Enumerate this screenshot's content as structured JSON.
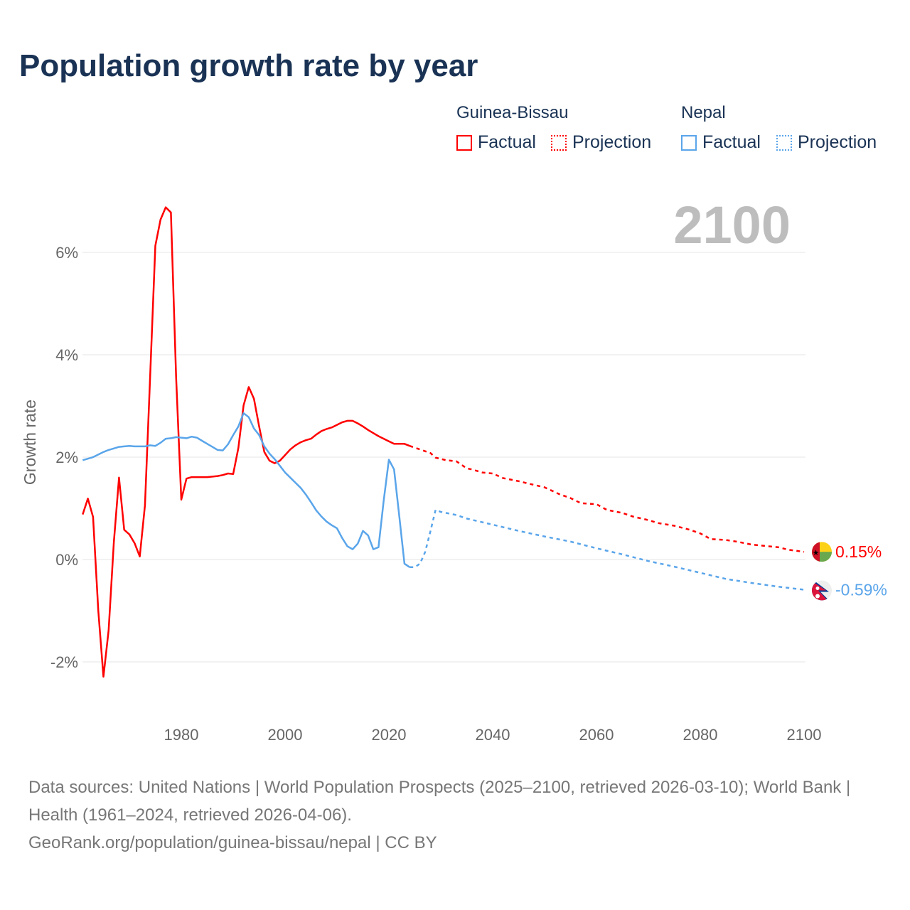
{
  "title": "Population growth rate by year",
  "legend": {
    "groups": [
      {
        "name": "Guinea-Bissau",
        "factual": "Factual",
        "projection": "Projection",
        "color": "#ff0000"
      },
      {
        "name": "Nepal",
        "factual": "Factual",
        "projection": "Projection",
        "color": "#5aa5ea"
      }
    ]
  },
  "footer": {
    "sources": "Data sources: United Nations | World Population Prospects (2025–2100, retrieved 2026-03-10); World Bank | Health (1961–2024, retrieved 2026-04-06).",
    "credit": "GeoRank.org/population/guinea-bissau/nepal | CC BY"
  },
  "chart_data": {
    "type": "line",
    "title": "Population growth rate by year",
    "ylabel": "Growth rate",
    "xlabel": "",
    "year_label": "2100",
    "xlim": [
      1961,
      2100
    ],
    "ylim": [
      -3,
      7
    ],
    "x_ticks": [
      "1980",
      "2000",
      "2020",
      "2040",
      "2060",
      "2080",
      "2100"
    ],
    "x_tick_values": [
      1980,
      2000,
      2020,
      2040,
      2060,
      2080,
      2100
    ],
    "y_ticks": [
      "-2%",
      "0%",
      "2%",
      "4%",
      "6%"
    ],
    "y_tick_values": [
      -2,
      0,
      2,
      4,
      6
    ],
    "grid": true,
    "series": [
      {
        "name": "Guinea-Bissau",
        "color": "#ff0000",
        "end_label": "0.15%",
        "factual": [
          [
            1961,
            0.88
          ],
          [
            1962,
            1.19
          ],
          [
            1963,
            0.83
          ],
          [
            1964,
            -0.99
          ],
          [
            1965,
            -2.29
          ],
          [
            1966,
            -1.38
          ],
          [
            1967,
            0.33
          ],
          [
            1968,
            1.6
          ],
          [
            1969,
            0.58
          ],
          [
            1970,
            0.49
          ],
          [
            1971,
            0.32
          ],
          [
            1972,
            0.06
          ],
          [
            1973,
            1.06
          ],
          [
            1974,
            3.58
          ],
          [
            1975,
            6.13
          ],
          [
            1976,
            6.64
          ],
          [
            1977,
            6.88
          ],
          [
            1978,
            6.78
          ],
          [
            1979,
            3.57
          ],
          [
            1980,
            1.17
          ],
          [
            1981,
            1.58
          ],
          [
            1982,
            1.61
          ],
          [
            1983,
            1.61
          ],
          [
            1984,
            1.61
          ],
          [
            1985,
            1.61
          ],
          [
            1986,
            1.62
          ],
          [
            1987,
            1.63
          ],
          [
            1988,
            1.65
          ],
          [
            1989,
            1.68
          ],
          [
            1990,
            1.67
          ],
          [
            1991,
            2.18
          ],
          [
            1992,
            3.01
          ],
          [
            1993,
            3.37
          ],
          [
            1994,
            3.14
          ],
          [
            1995,
            2.6
          ],
          [
            1996,
            2.1
          ],
          [
            1997,
            1.93
          ],
          [
            1998,
            1.88
          ],
          [
            1999,
            1.93
          ],
          [
            2000,
            2.04
          ],
          [
            2001,
            2.15
          ],
          [
            2002,
            2.23
          ],
          [
            2003,
            2.29
          ],
          [
            2004,
            2.33
          ],
          [
            2005,
            2.36
          ],
          [
            2006,
            2.44
          ],
          [
            2007,
            2.51
          ],
          [
            2008,
            2.55
          ],
          [
            2009,
            2.58
          ],
          [
            2010,
            2.63
          ],
          [
            2011,
            2.68
          ],
          [
            2012,
            2.71
          ],
          [
            2013,
            2.71
          ],
          [
            2014,
            2.66
          ],
          [
            2015,
            2.6
          ],
          [
            2016,
            2.53
          ],
          [
            2017,
            2.47
          ],
          [
            2018,
            2.41
          ],
          [
            2019,
            2.36
          ],
          [
            2020,
            2.31
          ],
          [
            2021,
            2.26
          ],
          [
            2022,
            2.26
          ],
          [
            2023,
            2.26
          ],
          [
            2024,
            2.22
          ]
        ],
        "projection": [
          [
            2024,
            2.22
          ],
          [
            2026,
            2.15
          ],
          [
            2028,
            2.08
          ],
          [
            2029,
            1.99
          ],
          [
            2031,
            1.94
          ],
          [
            2033,
            1.92
          ],
          [
            2035,
            1.78
          ],
          [
            2036,
            1.76
          ],
          [
            2038,
            1.7
          ],
          [
            2040,
            1.68
          ],
          [
            2042,
            1.59
          ],
          [
            2045,
            1.53
          ],
          [
            2047,
            1.48
          ],
          [
            2050,
            1.41
          ],
          [
            2053,
            1.27
          ],
          [
            2055,
            1.2
          ],
          [
            2057,
            1.1
          ],
          [
            2060,
            1.08
          ],
          [
            2062,
            0.97
          ],
          [
            2065,
            0.91
          ],
          [
            2067,
            0.84
          ],
          [
            2070,
            0.77
          ],
          [
            2072,
            0.71
          ],
          [
            2075,
            0.66
          ],
          [
            2078,
            0.58
          ],
          [
            2080,
            0.51
          ],
          [
            2082,
            0.4
          ],
          [
            2085,
            0.38
          ],
          [
            2087,
            0.35
          ],
          [
            2090,
            0.29
          ],
          [
            2093,
            0.26
          ],
          [
            2095,
            0.24
          ],
          [
            2097,
            0.19
          ],
          [
            2100,
            0.15
          ]
        ]
      },
      {
        "name": "Nepal",
        "color": "#5aa5ea",
        "end_label": "-0.59%",
        "factual": [
          [
            1961,
            1.94
          ],
          [
            1962,
            1.97
          ],
          [
            1963,
            2.0
          ],
          [
            1964,
            2.05
          ],
          [
            1965,
            2.1
          ],
          [
            1966,
            2.14
          ],
          [
            1967,
            2.17
          ],
          [
            1968,
            2.2
          ],
          [
            1969,
            2.21
          ],
          [
            1970,
            2.22
          ],
          [
            1971,
            2.21
          ],
          [
            1972,
            2.21
          ],
          [
            1973,
            2.21
          ],
          [
            1974,
            2.23
          ],
          [
            1975,
            2.22
          ],
          [
            1976,
            2.28
          ],
          [
            1977,
            2.36
          ],
          [
            1978,
            2.37
          ],
          [
            1979,
            2.39
          ],
          [
            1980,
            2.38
          ],
          [
            1981,
            2.37
          ],
          [
            1982,
            2.4
          ],
          [
            1983,
            2.38
          ],
          [
            1984,
            2.32
          ],
          [
            1985,
            2.26
          ],
          [
            1986,
            2.2
          ],
          [
            1987,
            2.14
          ],
          [
            1988,
            2.13
          ],
          [
            1989,
            2.25
          ],
          [
            1990,
            2.43
          ],
          [
            1991,
            2.6
          ],
          [
            1992,
            2.86
          ],
          [
            1993,
            2.78
          ],
          [
            1994,
            2.56
          ],
          [
            1995,
            2.43
          ],
          [
            1996,
            2.21
          ],
          [
            1997,
            2.07
          ],
          [
            1998,
            1.96
          ],
          [
            1999,
            1.83
          ],
          [
            2000,
            1.7
          ],
          [
            2001,
            1.6
          ],
          [
            2002,
            1.5
          ],
          [
            2003,
            1.4
          ],
          [
            2004,
            1.27
          ],
          [
            2005,
            1.12
          ],
          [
            2006,
            0.96
          ],
          [
            2007,
            0.84
          ],
          [
            2008,
            0.74
          ],
          [
            2009,
            0.67
          ],
          [
            2010,
            0.61
          ],
          [
            2011,
            0.42
          ],
          [
            2012,
            0.26
          ],
          [
            2013,
            0.2
          ],
          [
            2014,
            0.31
          ],
          [
            2015,
            0.56
          ],
          [
            2016,
            0.47
          ],
          [
            2017,
            0.2
          ],
          [
            2018,
            0.24
          ],
          [
            2019,
            1.15
          ],
          [
            2020,
            1.95
          ],
          [
            2021,
            1.76
          ],
          [
            2022,
            0.85
          ],
          [
            2023,
            -0.08
          ],
          [
            2024,
            -0.15
          ]
        ],
        "projection": [
          [
            2024,
            -0.15
          ],
          [
            2025,
            -0.15
          ],
          [
            2026,
            -0.08
          ],
          [
            2027,
            0.15
          ],
          [
            2028,
            0.55
          ],
          [
            2029,
            0.97
          ],
          [
            2030,
            0.93
          ],
          [
            2033,
            0.87
          ],
          [
            2035,
            0.8
          ],
          [
            2040,
            0.68
          ],
          [
            2045,
            0.56
          ],
          [
            2050,
            0.45
          ],
          [
            2055,
            0.35
          ],
          [
            2060,
            0.22
          ],
          [
            2065,
            0.1
          ],
          [
            2070,
            -0.03
          ],
          [
            2075,
            -0.14
          ],
          [
            2080,
            -0.26
          ],
          [
            2085,
            -0.38
          ],
          [
            2090,
            -0.46
          ],
          [
            2095,
            -0.53
          ],
          [
            2100,
            -0.59
          ]
        ]
      }
    ]
  }
}
